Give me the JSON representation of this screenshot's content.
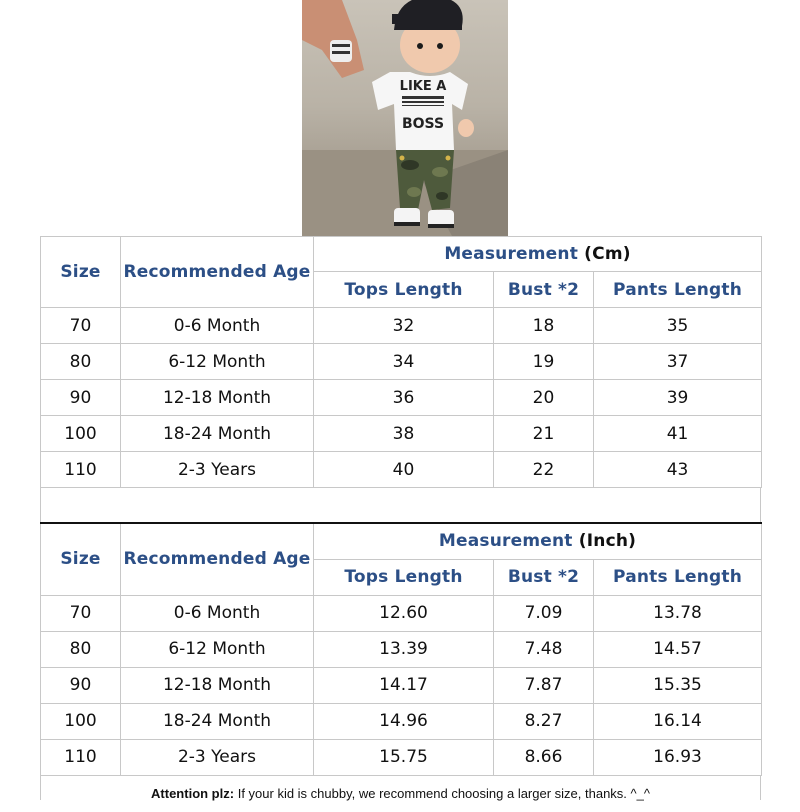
{
  "photo": {
    "shirt_text_line1": "LIKE A",
    "shirt_text_line2": "BOSS"
  },
  "cm_table": {
    "size_header": "Size",
    "age_header": "Recommended Age",
    "measurement_label": "Measurement",
    "measurement_unit": "(Cm)",
    "col_tops": "Tops Length",
    "col_bust": "Bust *2",
    "col_pants": "Pants Length",
    "rows": [
      {
        "size": "70",
        "age": "0-6 Month",
        "tops": "32",
        "bust": "18",
        "pants": "35"
      },
      {
        "size": "80",
        "age": "6-12 Month",
        "tops": "34",
        "bust": "19",
        "pants": "37"
      },
      {
        "size": "90",
        "age": "12-18 Month",
        "tops": "36",
        "bust": "20",
        "pants": "39"
      },
      {
        "size": "100",
        "age": "18-24 Month",
        "tops": "38",
        "bust": "21",
        "pants": "41"
      },
      {
        "size": "110",
        "age": "2-3 Years",
        "tops": "40",
        "bust": "22",
        "pants": "43"
      }
    ]
  },
  "inch_table": {
    "size_header": "Size",
    "age_header": "Recommended Age",
    "measurement_label": "Measurement",
    "measurement_unit": "(Inch)",
    "col_tops": "Tops Length",
    "col_bust": "Bust *2",
    "col_pants": "Pants Length",
    "rows": [
      {
        "size": "70",
        "age": "0-6 Month",
        "tops": "12.60",
        "bust": "7.09",
        "pants": "13.78"
      },
      {
        "size": "80",
        "age": "6-12 Month",
        "tops": "13.39",
        "bust": "7.48",
        "pants": "14.57"
      },
      {
        "size": "90",
        "age": "12-18 Month",
        "tops": "14.17",
        "bust": "7.87",
        "pants": "15.35"
      },
      {
        "size": "100",
        "age": "18-24 Month",
        "tops": "14.96",
        "bust": "8.27",
        "pants": "16.14"
      },
      {
        "size": "110",
        "age": "2-3 Years",
        "tops": "15.75",
        "bust": "8.66",
        "pants": "16.93"
      }
    ]
  },
  "note": {
    "label": "Attention plz:",
    "text": "If your kid is chubby, we recommend choosing a larger size, thanks. ^_^"
  },
  "colors": {
    "header_blue": "#2c4f86",
    "grid": "#c8c8c8"
  }
}
